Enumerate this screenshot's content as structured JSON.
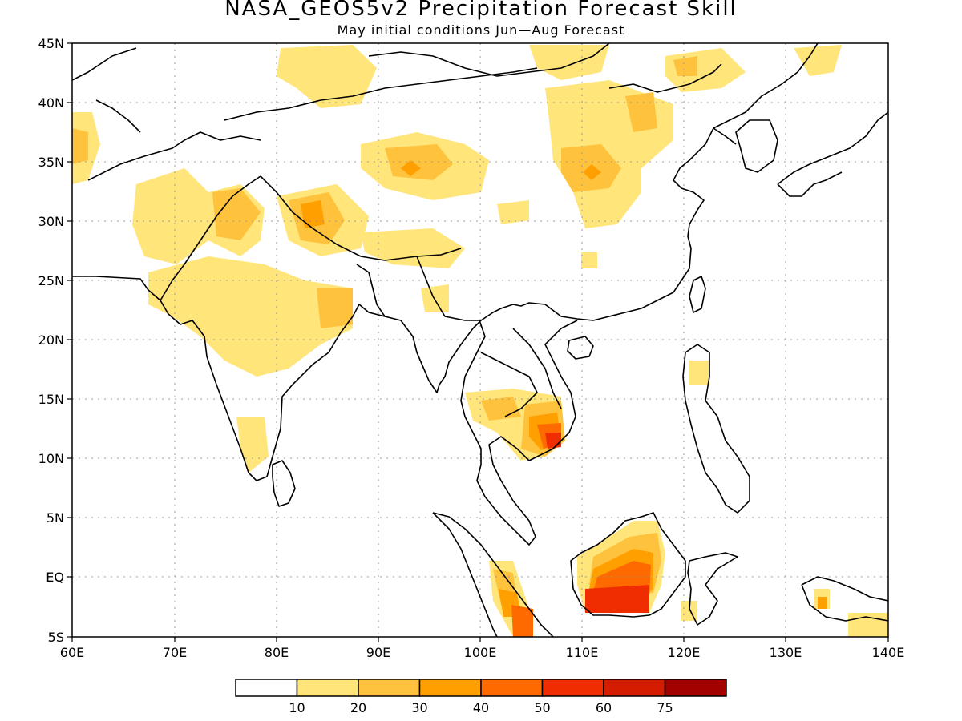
{
  "title": "NASA_GEOS5v2 Precipitation Forecast Skill",
  "subtitle": "May initial conditions  Jun—Aug Forecast",
  "map": {
    "lon_range": [
      60,
      140
    ],
    "lat_range": [
      -5,
      45
    ],
    "lon_ticks": [
      "60E",
      "70E",
      "80E",
      "90E",
      "100E",
      "110E",
      "120E",
      "130E",
      "140E"
    ],
    "lat_ticks": [
      "5S",
      "EQ",
      "5N",
      "10N",
      "15N",
      "20N",
      "25N",
      "30N",
      "35N",
      "40N",
      "45N"
    ],
    "grid": "dotted"
  },
  "colorbar": {
    "colors": [
      "#ffffff",
      "#ffe57a",
      "#ffc23d",
      "#ff9f00",
      "#ff6a00",
      "#f02d00",
      "#d41c00",
      "#a30000"
    ],
    "labels": [
      "10",
      "20",
      "30",
      "40",
      "50",
      "60",
      "75"
    ]
  }
}
